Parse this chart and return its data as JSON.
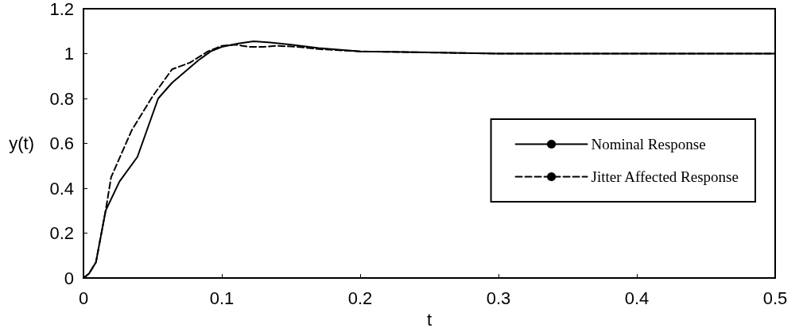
{
  "chart_data": {
    "type": "line",
    "xlabel": "t",
    "ylabel": "y(t)",
    "xlim": [
      0,
      0.5
    ],
    "ylim": [
      0,
      1.2
    ],
    "xticks": [
      0,
      0.1,
      0.2,
      0.3,
      0.4,
      0.5
    ],
    "yticks": [
      0,
      0.2,
      0.4,
      0.6,
      0.8,
      1,
      1.2
    ],
    "grid": false,
    "legend": "right",
    "marker": "none",
    "series": [
      {
        "name": "Nominal Response",
        "color": "#000000",
        "line_style": "solid",
        "x": [
          0,
          0.004,
          0.009,
          0.016,
          0.026,
          0.039,
          0.054,
          0.064,
          0.083,
          0.092,
          0.1,
          0.112,
          0.123,
          0.135,
          0.15,
          0.17,
          0.2,
          0.25,
          0.3,
          0.4,
          0.5
        ],
        "values": [
          0,
          0.02,
          0.07,
          0.3,
          0.43,
          0.54,
          0.8,
          0.87,
          0.97,
          1.01,
          1.03,
          1.045,
          1.055,
          1.05,
          1.04,
          1.025,
          1.01,
          1.005,
          1.0,
          1.0,
          1.0
        ]
      },
      {
        "name": "Jitter Affected Response",
        "color": "#000000",
        "line_style": "dashed",
        "x": [
          0,
          0.004,
          0.009,
          0.016,
          0.02,
          0.035,
          0.05,
          0.064,
          0.077,
          0.09,
          0.1,
          0.11,
          0.12,
          0.13,
          0.14,
          0.155,
          0.17,
          0.2,
          0.25,
          0.3,
          0.4,
          0.5
        ],
        "values": [
          0,
          0.02,
          0.07,
          0.3,
          0.45,
          0.66,
          0.81,
          0.93,
          0.96,
          1.01,
          1.035,
          1.04,
          1.03,
          1.03,
          1.035,
          1.03,
          1.02,
          1.01,
          1.005,
          1.0,
          1.0,
          1.0
        ]
      }
    ]
  }
}
